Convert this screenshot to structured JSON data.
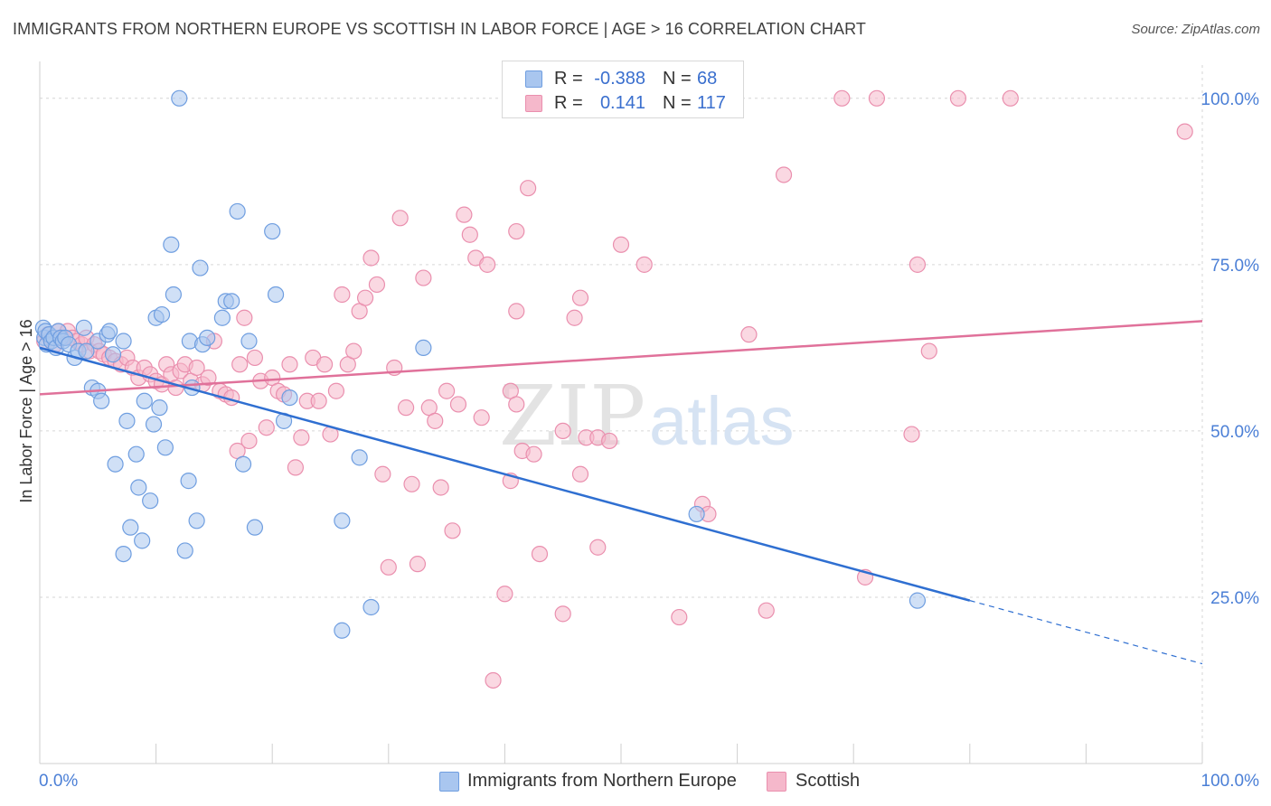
{
  "title": "IMMIGRANTS FROM NORTHERN EUROPE VS SCOTTISH IN LABOR FORCE | AGE > 16 CORRELATION CHART",
  "source": "Source: ZipAtlas.com",
  "watermark": {
    "zip": "ZIP",
    "atlas": "atlas"
  },
  "colors": {
    "blue_fill": "#a9c6ef",
    "blue_stroke": "#6f9ee0",
    "blue_line": "#2f6fd1",
    "pink_fill": "#f5b8cb",
    "pink_stroke": "#ea8fae",
    "pink_line": "#e0719a",
    "axis_text": "#4b7fd6",
    "grid": "#d6d6d6"
  },
  "legend_top": {
    "rows": [
      {
        "r_label": "R =",
        "r_value": "-0.388",
        "n_label": "N =",
        "n_value": "68"
      },
      {
        "r_label": "R =",
        "r_value": "0.141",
        "n_label": "N =",
        "n_value": "117"
      }
    ]
  },
  "legend_bottom": {
    "items": [
      {
        "label": "Immigrants from Northern Europe"
      },
      {
        "label": "Scottish"
      }
    ]
  },
  "chart_data": {
    "type": "scatter",
    "title": "IMMIGRANTS FROM NORTHERN EUROPE VS SCOTTISH IN LABOR FORCE | AGE > 16 CORRELATION CHART",
    "xlabel": "",
    "ylabel": "In Labor Force | Age > 16",
    "xlim": [
      0,
      100
    ],
    "ylim": [
      0,
      105
    ],
    "x_tick_labels": [
      "0.0%",
      "100.0%"
    ],
    "y_ticks": [
      25,
      50,
      75,
      100
    ],
    "y_tick_labels": [
      "25.0%",
      "50.0%",
      "75.0%",
      "100.0%"
    ],
    "grid": true,
    "legend_position": "top-center",
    "series": [
      {
        "name": "Immigrants from Northern Europe",
        "R": -0.388,
        "N": 68,
        "trend": {
          "x0": 0,
          "y0": 62.5,
          "x1": 80,
          "y1": 24.5,
          "dash_x1": 100,
          "dash_y1": 15
        },
        "points": [
          [
            0.3,
            65.5
          ],
          [
            0.4,
            64
          ],
          [
            0.5,
            65
          ],
          [
            0.6,
            63
          ],
          [
            0.8,
            64.5
          ],
          [
            1,
            63.5
          ],
          [
            1.2,
            64
          ],
          [
            1.4,
            62.5
          ],
          [
            1.6,
            65
          ],
          [
            1.8,
            64
          ],
          [
            2,
            63.5
          ],
          [
            2.2,
            64
          ],
          [
            2.5,
            63
          ],
          [
            3,
            61
          ],
          [
            3.3,
            62
          ],
          [
            3.8,
            65.5
          ],
          [
            4,
            62
          ],
          [
            4.5,
            56.5
          ],
          [
            5,
            63.5
          ],
          [
            5,
            56
          ],
          [
            5.3,
            54.5
          ],
          [
            5.8,
            64.5
          ],
          [
            6,
            65
          ],
          [
            6.3,
            61.5
          ],
          [
            6.5,
            45
          ],
          [
            7.2,
            63.5
          ],
          [
            7.2,
            31.5
          ],
          [
            7.5,
            51.5
          ],
          [
            7.8,
            35.5
          ],
          [
            8.3,
            46.5
          ],
          [
            8.5,
            41.5
          ],
          [
            8.8,
            33.5
          ],
          [
            9,
            54.5
          ],
          [
            9.5,
            39.5
          ],
          [
            9.8,
            51
          ],
          [
            10,
            67
          ],
          [
            10.3,
            53.5
          ],
          [
            10.5,
            67.5
          ],
          [
            10.8,
            47.5
          ],
          [
            11.3,
            78
          ],
          [
            11.5,
            70.5
          ],
          [
            12,
            100
          ],
          [
            12.5,
            32
          ],
          [
            12.8,
            42.5
          ],
          [
            12.9,
            63.5
          ],
          [
            13.1,
            56.5
          ],
          [
            13.5,
            36.5
          ],
          [
            13.8,
            74.5
          ],
          [
            14,
            63
          ],
          [
            14.4,
            64
          ],
          [
            15.7,
            67
          ],
          [
            16,
            69.5
          ],
          [
            16.5,
            69.5
          ],
          [
            17,
            83
          ],
          [
            17.5,
            45
          ],
          [
            18,
            63.5
          ],
          [
            18.5,
            35.5
          ],
          [
            20,
            80
          ],
          [
            20.3,
            70.5
          ],
          [
            21,
            51.5
          ],
          [
            21.5,
            55
          ],
          [
            26,
            36.5
          ],
          [
            26,
            20
          ],
          [
            27.5,
            46
          ],
          [
            28.5,
            23.5
          ],
          [
            33,
            62.5
          ],
          [
            56.5,
            37.5
          ],
          [
            75.5,
            24.5
          ]
        ]
      },
      {
        "name": "Scottish",
        "R": 0.141,
        "N": 117,
        "trend": {
          "x0": 0,
          "y0": 55.5,
          "x1": 100,
          "y1": 66.5
        },
        "points": [
          [
            0.4,
            63.5
          ],
          [
            0.7,
            64.5
          ],
          [
            1,
            64
          ],
          [
            1.3,
            63
          ],
          [
            1.6,
            65
          ],
          [
            2,
            64
          ],
          [
            2.4,
            65
          ],
          [
            2.8,
            64
          ],
          [
            3.2,
            63.5
          ],
          [
            3.6,
            63
          ],
          [
            4,
            64
          ],
          [
            4.3,
            62
          ],
          [
            4.7,
            63
          ],
          [
            5.1,
            62
          ],
          [
            5.5,
            61.5
          ],
          [
            6,
            61
          ],
          [
            6.5,
            60.5
          ],
          [
            7,
            60
          ],
          [
            7.5,
            61
          ],
          [
            8,
            59.5
          ],
          [
            8.5,
            58
          ],
          [
            9,
            59.5
          ],
          [
            9.5,
            58.5
          ],
          [
            10,
            57.5
          ],
          [
            10.5,
            57
          ],
          [
            10.9,
            60
          ],
          [
            11.3,
            58.5
          ],
          [
            11.7,
            56.5
          ],
          [
            12.1,
            59
          ],
          [
            12.5,
            60
          ],
          [
            13,
            57.5
          ],
          [
            13.5,
            59.5
          ],
          [
            14,
            57
          ],
          [
            14.5,
            58
          ],
          [
            15,
            63.5
          ],
          [
            15.5,
            56
          ],
          [
            16,
            55.5
          ],
          [
            16.5,
            55
          ],
          [
            17,
            47
          ],
          [
            17.2,
            60
          ],
          [
            17.6,
            67
          ],
          [
            18,
            48.5
          ],
          [
            18.5,
            61
          ],
          [
            19,
            57.5
          ],
          [
            19.5,
            50.5
          ],
          [
            20,
            58
          ],
          [
            20.5,
            56
          ],
          [
            21,
            55.5
          ],
          [
            21.5,
            60
          ],
          [
            22,
            44.5
          ],
          [
            22.5,
            49
          ],
          [
            23,
            54.5
          ],
          [
            23.5,
            61
          ],
          [
            24,
            54.5
          ],
          [
            24.5,
            60
          ],
          [
            25,
            49.5
          ],
          [
            25.5,
            56
          ],
          [
            26,
            70.5
          ],
          [
            26.5,
            60
          ],
          [
            27,
            62
          ],
          [
            27.5,
            68
          ],
          [
            28,
            70
          ],
          [
            28.5,
            76
          ],
          [
            29,
            72
          ],
          [
            29.5,
            43.5
          ],
          [
            30,
            29.5
          ],
          [
            30.5,
            59.5
          ],
          [
            31,
            82
          ],
          [
            31.5,
            53.5
          ],
          [
            32,
            42
          ],
          [
            32.5,
            30
          ],
          [
            33,
            73
          ],
          [
            33.5,
            53.5
          ],
          [
            34,
            51.5
          ],
          [
            34.5,
            41.5
          ],
          [
            35,
            56
          ],
          [
            35.5,
            35
          ],
          [
            36,
            54
          ],
          [
            36.5,
            82.5
          ],
          [
            37,
            79.5
          ],
          [
            37.5,
            76
          ],
          [
            38,
            52
          ],
          [
            38.5,
            75
          ],
          [
            39,
            12.5
          ],
          [
            40,
            25.5
          ],
          [
            40.5,
            42.5
          ],
          [
            40.5,
            56
          ],
          [
            41,
            54
          ],
          [
            41,
            68
          ],
          [
            41,
            80
          ],
          [
            41.5,
            47
          ],
          [
            42,
            86.5
          ],
          [
            42.5,
            46.5
          ],
          [
            43,
            31.5
          ],
          [
            45,
            22.5
          ],
          [
            45,
            50
          ],
          [
            46,
            67
          ],
          [
            46.5,
            70
          ],
          [
            46.5,
            43.5
          ],
          [
            47,
            49
          ],
          [
            48,
            32.5
          ],
          [
            48,
            49
          ],
          [
            49,
            48.5
          ],
          [
            50,
            78
          ],
          [
            52,
            75
          ],
          [
            55,
            22
          ],
          [
            57,
            39
          ],
          [
            57.5,
            37.5
          ],
          [
            61,
            64.5
          ],
          [
            62.5,
            23
          ],
          [
            64,
            88.5
          ],
          [
            69,
            100
          ],
          [
            71,
            28
          ],
          [
            72,
            100
          ],
          [
            75,
            49.5
          ],
          [
            75.5,
            75
          ],
          [
            76.5,
            62
          ],
          [
            79,
            100
          ],
          [
            83.5,
            100
          ],
          [
            98.5,
            95
          ]
        ]
      }
    ]
  }
}
